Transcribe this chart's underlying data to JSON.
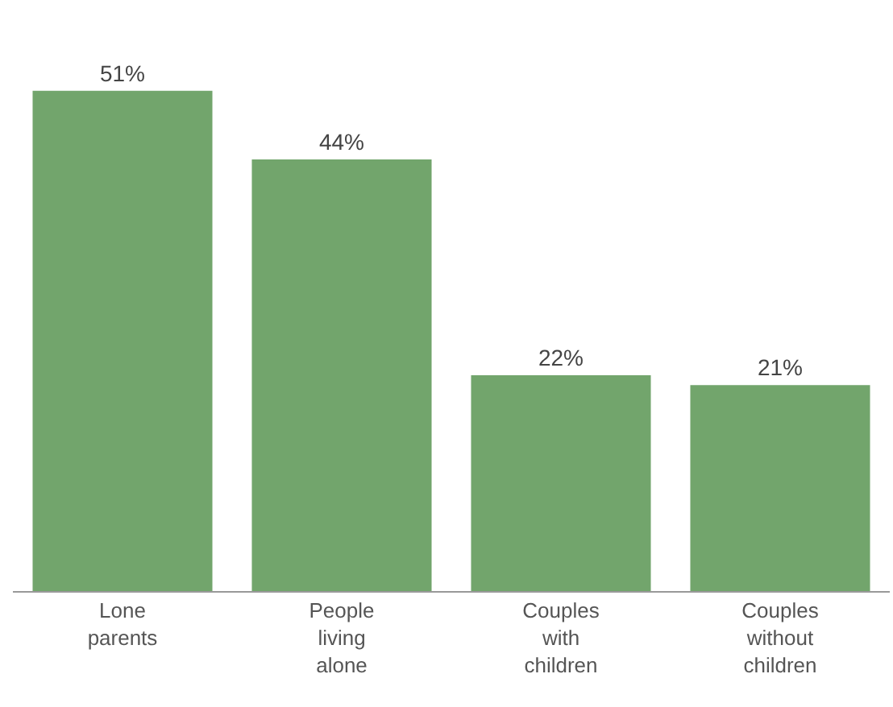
{
  "chart_data": {
    "type": "bar",
    "categories": [
      "Lone parents",
      "People living alone",
      "Couples with children",
      "Couples without children"
    ],
    "values": [
      51,
      44,
      22,
      21
    ],
    "value_labels": [
      "51%",
      "44%",
      "22%",
      "21%"
    ],
    "color": "#72a56c",
    "grid": false,
    "legend": false
  }
}
